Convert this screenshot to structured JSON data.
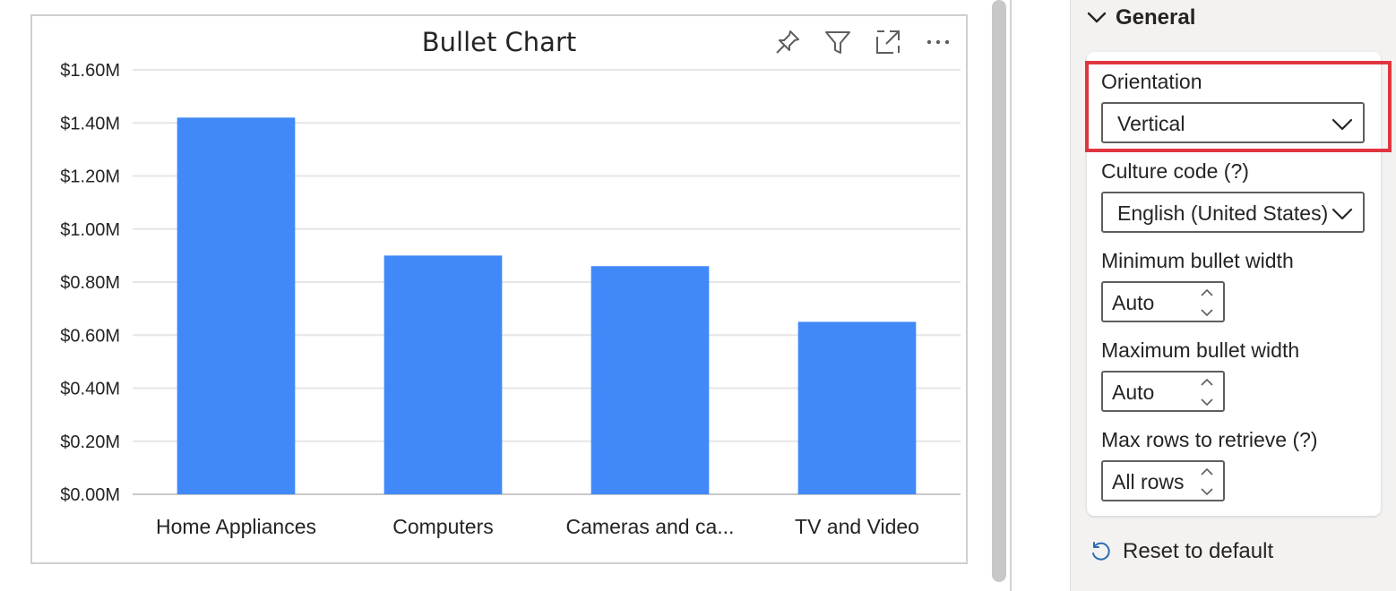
{
  "visual": {
    "title": "Bullet Chart",
    "header_icons": [
      "pin-icon",
      "filter-icon",
      "focus-mode-icon",
      "more-options-icon"
    ]
  },
  "chart_data": {
    "type": "bar",
    "categories": [
      "Home Appliances",
      "Computers",
      "Cameras and ca...",
      "TV and Video"
    ],
    "values": [
      1.42,
      0.9,
      0.86,
      0.65
    ],
    "y_tick_labels": [
      "$0.00M",
      "$0.20M",
      "$0.40M",
      "$0.60M",
      "$0.80M",
      "$1.00M",
      "$1.20M",
      "$1.40M",
      "$1.60M"
    ],
    "ylim": [
      0,
      1.6
    ],
    "grid": true,
    "bar_color": "#4189f8"
  },
  "format_pane": {
    "section_title": "General",
    "orientation": {
      "label": "Orientation",
      "value": "Vertical"
    },
    "culture_code": {
      "label": "Culture code (?)",
      "value": "English (United States)"
    },
    "min_bullet_width": {
      "label": "Minimum bullet width",
      "value": "Auto"
    },
    "max_bullet_width": {
      "label": "Maximum bullet width",
      "value": "Auto"
    },
    "max_rows": {
      "label": "Max rows to retrieve (?)",
      "value": "All rows"
    },
    "reset_label": "Reset to default",
    "highlight_color": "#e0353f"
  }
}
